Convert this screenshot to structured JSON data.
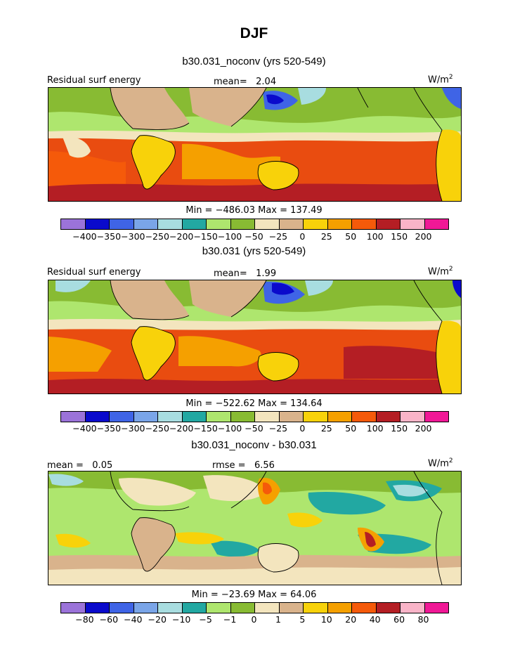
{
  "title": "DJF",
  "unit_prefix": "W/m",
  "unit_power": "2",
  "panels": [
    {
      "subtitle": "b30.031_noconv (yrs 520-549)",
      "left_label": "Residual surf energy",
      "center_label": "mean=   2.04",
      "minmax": "Min = −486.03 Max = 137.49"
    },
    {
      "subtitle": "b30.031 (yrs 520-549)",
      "left_label": "Residual surf energy",
      "center_label": "mean=   1.99",
      "minmax": "Min = −522.62 Max = 134.64"
    },
    {
      "subtitle": "b30.031_noconv - b30.031",
      "left_label": "mean =   0.05",
      "center_label": "rmse =   6.56",
      "minmax": "Min = −23.69 Max =  64.06"
    }
  ],
  "colorbar_colors": [
    "#9b73d9",
    "#0a0acc",
    "#3f64e6",
    "#7aa5e8",
    "#a8dde0",
    "#22a8a2",
    "#aee66e",
    "#88bb33",
    "#f3e5be",
    "#d9b38c",
    "#f8d20a",
    "#f5a000",
    "#f55a0a",
    "#b41e24",
    "#f9b4c8",
    "#f01896"
  ],
  "colorbar_ticks_top": [
    "−400",
    "−350",
    "−300",
    "−250",
    "−200",
    "−150",
    "−100",
    "−50",
    "−25",
    "0",
    "25",
    "50",
    "100",
    "150",
    "200"
  ],
  "colorbar_ticks_diff": [
    "−80",
    "−60",
    "−40",
    "−20",
    "−10",
    "−5",
    "−1",
    "0",
    "1",
    "5",
    "10",
    "20",
    "40",
    "60",
    "80"
  ]
}
